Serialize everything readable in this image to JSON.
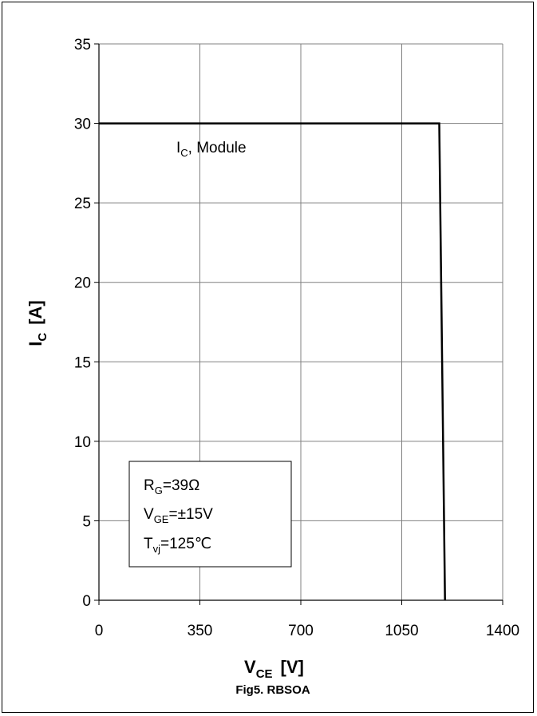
{
  "chart_data": {
    "type": "line",
    "title": "Fig5. RBSOA",
    "xlabel": {
      "main": "V",
      "sub": "CE",
      "unit": "[V]"
    },
    "ylabel": {
      "main": "I",
      "sub": "C",
      "unit": "[A]"
    },
    "xlim": [
      0,
      1400
    ],
    "ylim": [
      0,
      35
    ],
    "xticks": [
      "0",
      "350",
      "700",
      "1050",
      "1400"
    ],
    "yticks": [
      "0",
      "5",
      "10",
      "15",
      "20",
      "25",
      "30",
      "35"
    ],
    "grid": true,
    "series": [
      {
        "name": "IC, Module",
        "x": [
          0,
          1180,
          1200
        ],
        "y": [
          30,
          30,
          0
        ]
      }
    ],
    "series_label": {
      "main": "I",
      "sub": "C",
      "rest": ", Module"
    },
    "conditions": [
      {
        "main": "R",
        "sub": "G",
        "rest": "=39Ω"
      },
      {
        "main": "V",
        "sub": "GE",
        "rest": "=±15V"
      },
      {
        "main": "T",
        "sub": "vj",
        "rest": "=125℃"
      }
    ],
    "colors": {
      "line": "#000000",
      "grid": "#808080"
    }
  }
}
